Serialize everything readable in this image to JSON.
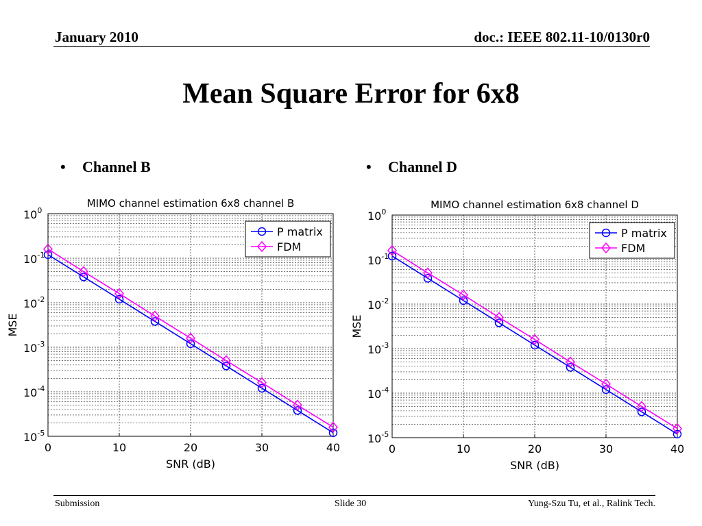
{
  "header": {
    "date": "January 2010",
    "doc": "doc.: IEEE 802.11-10/0130r0"
  },
  "slide_title": "Mean Square Error for 6x8",
  "bullets": {
    "left": "Channel B",
    "right": "Channel D",
    "marker": "•"
  },
  "footer": {
    "left": "Submission",
    "center": "Slide 30",
    "right": "Yung-Szu Tu, et al., Ralink Tech."
  },
  "chart_data": [
    {
      "type": "line",
      "title": "MIMO channel estimation 6x8 channel B",
      "xlabel": "SNR (dB)",
      "ylabel": "MSE",
      "xlim": [
        0,
        40
      ],
      "ylim": [
        1e-05,
        1
      ],
      "yscale": "log",
      "xticks": [
        "0",
        "10",
        "20",
        "30",
        "40"
      ],
      "yticks": [
        {
          "base": "10",
          "exp": "0"
        },
        {
          "base": "10",
          "exp": "-1"
        },
        {
          "base": "10",
          "exp": "-2"
        },
        {
          "base": "10",
          "exp": "-3"
        },
        {
          "base": "10",
          "exp": "-4"
        },
        {
          "base": "10",
          "exp": "-5"
        }
      ],
      "grid": true,
      "legend_position": "top-right",
      "x": [
        0,
        5,
        10,
        15,
        20,
        25,
        30,
        35,
        40
      ],
      "series": [
        {
          "name": "P matrix",
          "color": "#0000ff",
          "marker": "circle",
          "values": [
            0.12,
            0.038,
            0.012,
            0.0038,
            0.0012,
            0.00038,
            0.00012,
            3.8e-05,
            1.2e-05
          ]
        },
        {
          "name": "FDM",
          "color": "#ff00ff",
          "marker": "diamond",
          "values": [
            0.16,
            0.05,
            0.016,
            0.005,
            0.0016,
            0.0005,
            0.00016,
            5e-05,
            1.6e-05
          ]
        }
      ]
    },
    {
      "type": "line",
      "title": "MIMO channel estimation 6x8 channel D",
      "xlabel": "SNR (dB)",
      "ylabel": "MSE",
      "xlim": [
        0,
        40
      ],
      "ylim": [
        1e-05,
        1
      ],
      "yscale": "log",
      "xticks": [
        "0",
        "10",
        "20",
        "30",
        "40"
      ],
      "yticks": [
        {
          "base": "10",
          "exp": "0"
        },
        {
          "base": "10",
          "exp": "-1"
        },
        {
          "base": "10",
          "exp": "-2"
        },
        {
          "base": "10",
          "exp": "-3"
        },
        {
          "base": "10",
          "exp": "-4"
        },
        {
          "base": "10",
          "exp": "-5"
        }
      ],
      "grid": true,
      "legend_position": "top-right",
      "x": [
        0,
        5,
        10,
        15,
        20,
        25,
        30,
        35,
        40
      ],
      "series": [
        {
          "name": "P matrix",
          "color": "#0000ff",
          "marker": "circle",
          "values": [
            0.12,
            0.038,
            0.012,
            0.0038,
            0.0012,
            0.00038,
            0.00012,
            3.8e-05,
            1.2e-05
          ]
        },
        {
          "name": "FDM",
          "color": "#ff00ff",
          "marker": "diamond",
          "values": [
            0.16,
            0.05,
            0.016,
            0.005,
            0.0016,
            0.0005,
            0.00016,
            5e-05,
            1.6e-05
          ]
        }
      ]
    }
  ]
}
